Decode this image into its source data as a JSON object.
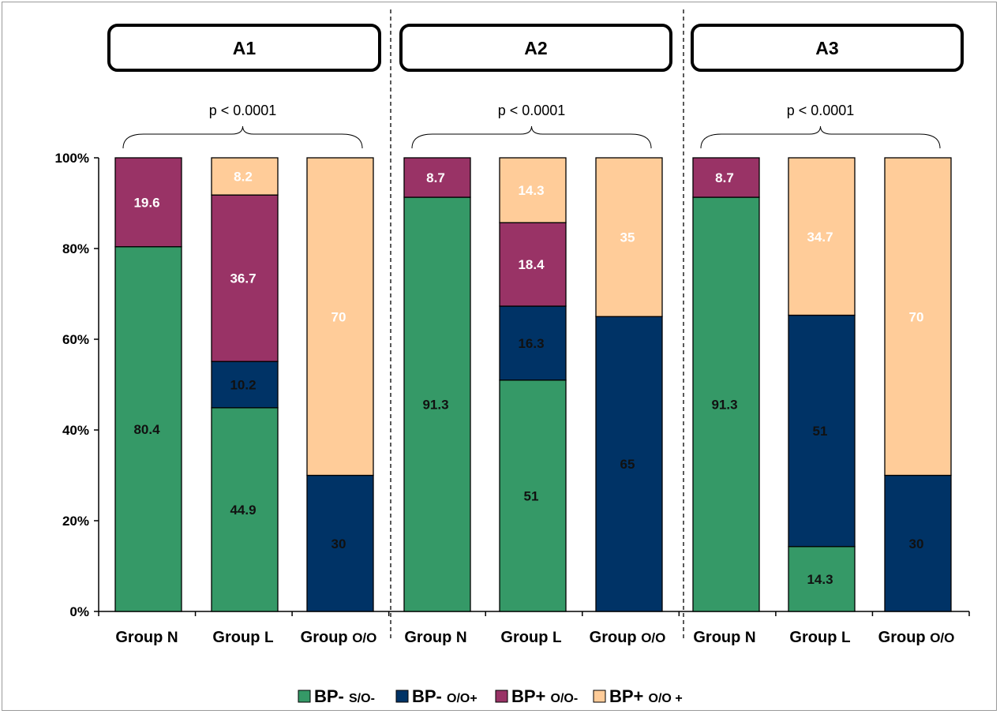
{
  "chart_data": {
    "type": "bar",
    "stacked": true,
    "percent": true,
    "ylim": [
      0,
      100
    ],
    "y_ticks": [
      "0%",
      "20%",
      "40%",
      "60%",
      "80%",
      "100%"
    ],
    "grid": false,
    "legend": {
      "placement": "bottom",
      "entries": [
        {
          "bp": "BP-",
          "state": "S/O-",
          "color": "#359967"
        },
        {
          "bp": "BP-",
          "state": "O/O+",
          "color": "#003366"
        },
        {
          "bp": "BP+",
          "state": "O/O-",
          "color": "#993366"
        },
        {
          "bp": "BP+",
          "state": "O/O +",
          "color": "#ffcc99"
        }
      ]
    },
    "panels": [
      {
        "title": "A1",
        "p_value": "p < 0.0001",
        "groups": [
          {
            "label": "Group",
            "suffix": "N",
            "segments": [
              80.4,
              0,
              19.6,
              0
            ],
            "labels": [
              "80.4",
              "",
              "19.6",
              ""
            ]
          },
          {
            "label": "Group",
            "suffix": "L",
            "segments": [
              44.9,
              10.2,
              36.7,
              8.2
            ],
            "labels": [
              "44.9",
              "10.2",
              "36.7",
              "8.2"
            ]
          },
          {
            "label": "Group",
            "suffix": "O/O",
            "segments": [
              0,
              30,
              0,
              70
            ],
            "labels": [
              "",
              "30",
              "",
              "70"
            ]
          }
        ]
      },
      {
        "title": "A2",
        "p_value": "p < 0.0001",
        "groups": [
          {
            "label": "Group",
            "suffix": "N",
            "segments": [
              91.3,
              0,
              8.7,
              0
            ],
            "labels": [
              "91.3",
              "",
              "8.7",
              ""
            ]
          },
          {
            "label": "Group",
            "suffix": "L",
            "segments": [
              51,
              16.3,
              18.4,
              14.3
            ],
            "labels": [
              "51",
              "16.3",
              "18.4",
              "14.3"
            ]
          },
          {
            "label": "Group",
            "suffix": "O/O",
            "segments": [
              0,
              65,
              0,
              35
            ],
            "labels": [
              "",
              "65",
              "",
              "35"
            ]
          }
        ]
      },
      {
        "title": "A3",
        "p_value": "p < 0.0001",
        "groups": [
          {
            "label": "Group",
            "suffix": "N",
            "segments": [
              91.3,
              0,
              8.7,
              0
            ],
            "labels": [
              "91.3",
              "",
              "8.7",
              ""
            ]
          },
          {
            "label": "Group",
            "suffix": "L",
            "segments": [
              14.3,
              51,
              0,
              34.7
            ],
            "labels": [
              "14.3",
              "51",
              "",
              "34.7"
            ]
          },
          {
            "label": "Group",
            "suffix": "O/O",
            "segments": [
              0,
              30,
              0,
              70
            ],
            "labels": [
              "",
              "30",
              "",
              "70"
            ]
          }
        ]
      }
    ]
  }
}
